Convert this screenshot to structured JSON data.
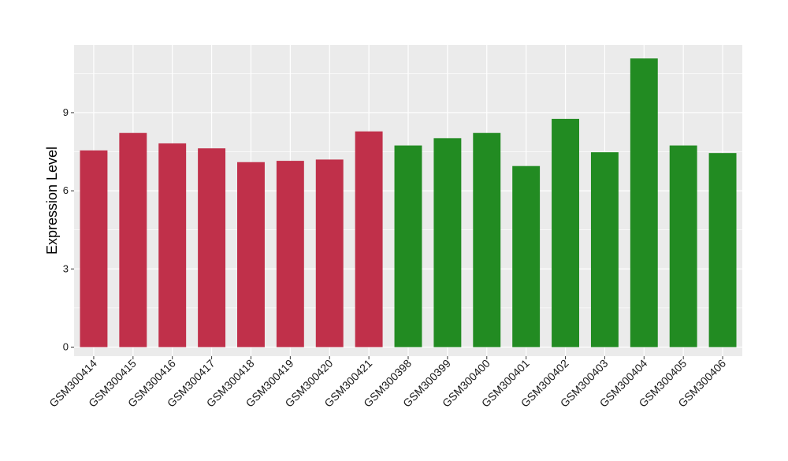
{
  "chart_data": {
    "type": "bar",
    "title": "",
    "xlabel": "",
    "ylabel": "Expression Level",
    "ylim": [
      -0.35,
      11.6
    ],
    "yticks": [
      0,
      3,
      6,
      9
    ],
    "grid": true,
    "legend": "none",
    "categories": [
      "GSM300414",
      "GSM300415",
      "GSM300416",
      "GSM300417",
      "GSM300418",
      "GSM300419",
      "GSM300420",
      "GSM300421",
      "GSM300398",
      "GSM300399",
      "GSM300400",
      "GSM300401",
      "GSM300402",
      "GSM300403",
      "GSM300404",
      "GSM300405",
      "GSM300406"
    ],
    "values": [
      7.55,
      8.22,
      7.82,
      7.63,
      7.1,
      7.15,
      7.2,
      8.28,
      7.74,
      8.02,
      8.22,
      6.95,
      8.76,
      7.48,
      11.08,
      7.74,
      7.45
    ],
    "bar_colors": [
      "#c0304a",
      "#c0304a",
      "#c0304a",
      "#c0304a",
      "#c0304a",
      "#c0304a",
      "#c0304a",
      "#c0304a",
      "#228b22",
      "#228b22",
      "#228b22",
      "#228b22",
      "#228b22",
      "#228b22",
      "#228b22",
      "#228b22",
      "#228b22"
    ]
  },
  "colors": {
    "panel_background": "#ebebeb",
    "grid_line": "#ffffff",
    "axis_text": "#1a1a1a"
  }
}
